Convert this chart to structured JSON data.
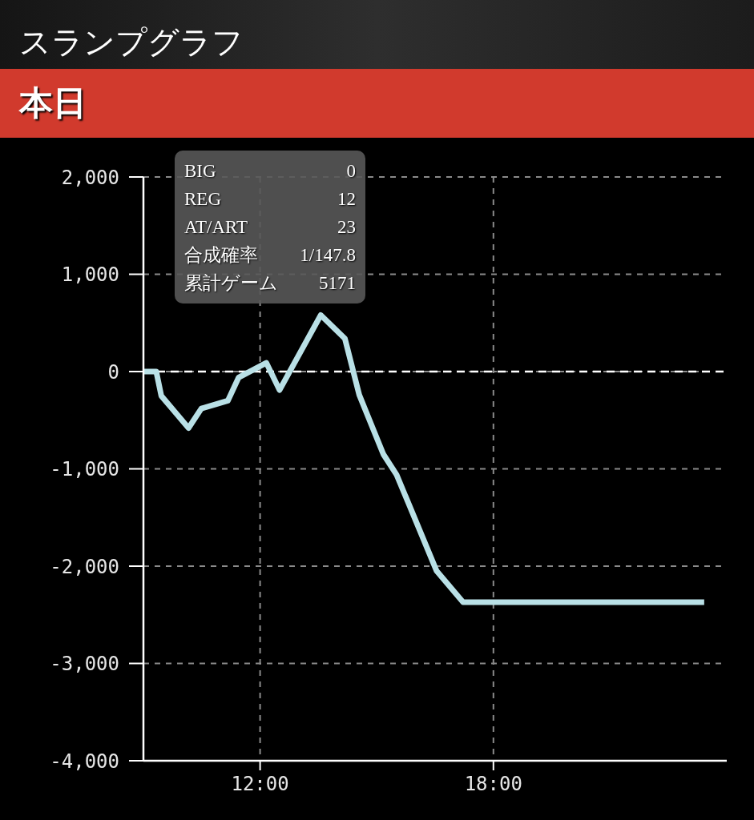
{
  "chart_data": {
    "type": "line",
    "title": "スランプグラフ",
    "subtitle": "本日",
    "x": [
      9,
      9.33,
      9.46,
      10.16,
      10.49,
      11.17,
      11.45,
      12.16,
      12.5,
      13.56,
      14.18,
      14.55,
      15.17,
      15.51,
      16.54,
      17.22,
      23.42
    ],
    "values": [
      0,
      0,
      -250,
      -580,
      -380,
      -300,
      -60,
      90,
      -190,
      580,
      340,
      -240,
      -850,
      -1060,
      -2050,
      -2370,
      -2370
    ],
    "color": "#b9e0e6",
    "line_style": "solid",
    "xlim": [
      9,
      24
    ],
    "xticks": [
      {
        "value": 12,
        "label": "12:00"
      },
      {
        "value": 18,
        "label": "18:00"
      }
    ],
    "ylim": [
      -4000,
      2000
    ],
    "yticks": [
      {
        "value": 2000,
        "label": "2,000"
      },
      {
        "value": 1000,
        "label": "1,000"
      },
      0,
      {
        "value": -1000,
        "label": "-1,000"
      },
      {
        "value": -2000,
        "label": "-2,000"
      },
      {
        "value": -3000,
        "label": "-3,000"
      },
      {
        "value": -4000,
        "label": "-4,000"
      }
    ],
    "grid": true,
    "ref_lines": [
      {
        "axis": "y",
        "value": 0,
        "color": "#ffffff",
        "line_style": "dashed"
      }
    ],
    "annotations": [
      "BIG",
      "0",
      "REG",
      "12",
      "AT/ART",
      "23",
      "合成確率",
      "1/147.8",
      "累計ゲーム",
      "5171"
    ]
  }
}
